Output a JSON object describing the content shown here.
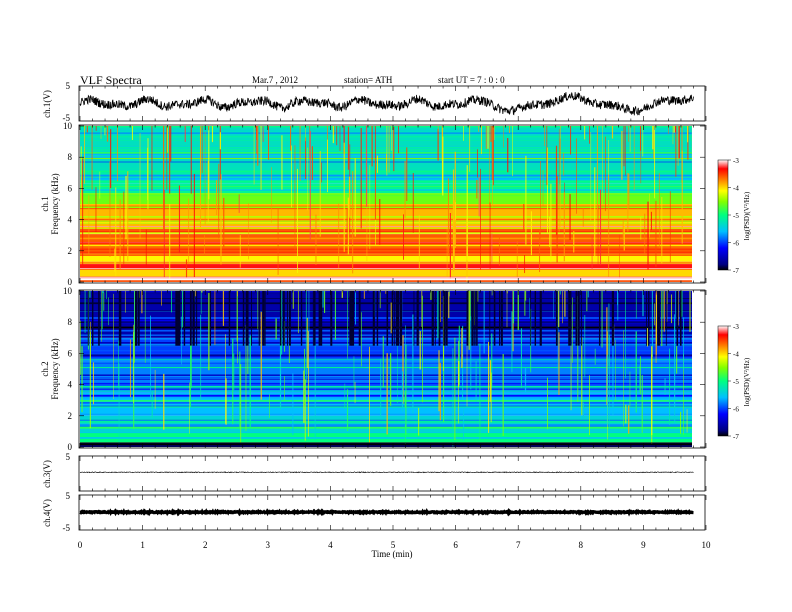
{
  "header": {
    "title": "VLF  Spectra",
    "date": "Mar.7  , 2012",
    "station": "station= ATH",
    "start": "start  UT  =    7 : 0 : 0"
  },
  "chart_data": [
    {
      "type": "line",
      "ylabel": "ch.1(V)",
      "ylim": [
        -5,
        5
      ],
      "yticks": [
        "5",
        "-5"
      ],
      "xlim": [
        0,
        10
      ],
      "data_end_min": 9.8,
      "description_values": {
        "mean": 0.0,
        "amplitude": 2.5
      }
    },
    {
      "type": "heatmap",
      "ylabel_top": "ch.1",
      "ylabel": "Frequency  (kHz)",
      "ylim": [
        0,
        10
      ],
      "yticks": [
        "0",
        "2",
        "4",
        "6",
        "8",
        "10"
      ],
      "xlim": [
        0,
        10
      ],
      "data_end_min": 9.8,
      "colorbar": {
        "label": "log(PSD)(V²/Hz)",
        "range": [
          -7,
          -3
        ],
        "ticks": [
          "-3",
          "-4",
          "-5",
          "-6",
          "-7"
        ]
      },
      "bands": [
        {
          "from": 0.0,
          "to": 0.35,
          "level": -3.2
        },
        {
          "from": 0.35,
          "to": 0.8,
          "level": -4.0
        },
        {
          "from": 0.8,
          "to": 1.3,
          "level": -3.3
        },
        {
          "from": 1.3,
          "to": 1.8,
          "level": -4.1
        },
        {
          "from": 1.8,
          "to": 3.4,
          "level": -3.6
        },
        {
          "from": 3.4,
          "to": 5.0,
          "level": -3.9
        },
        {
          "from": 5.0,
          "to": 5.7,
          "level": -4.6
        },
        {
          "from": 5.7,
          "to": 6.3,
          "level": -5.1
        },
        {
          "from": 6.3,
          "to": 10.0,
          "level": -5.3
        }
      ]
    },
    {
      "type": "heatmap",
      "ylabel_top": "ch.2",
      "ylabel": "Frequency  (kHz)",
      "ylim": [
        0,
        10
      ],
      "yticks": [
        "0",
        "2",
        "4",
        "6",
        "8",
        "10"
      ],
      "xlim": [
        0,
        10
      ],
      "data_end_min": 9.8,
      "colorbar": {
        "label": "log(PSD)(V²/Hz)",
        "range": [
          -7,
          -3
        ],
        "ticks": [
          "-3",
          "-4",
          "-5",
          "-6",
          "-7"
        ]
      },
      "bands": [
        {
          "from": 0.0,
          "to": 0.3,
          "level": -7.0
        },
        {
          "from": 0.3,
          "to": 0.9,
          "level": -5.0
        },
        {
          "from": 0.9,
          "to": 2.0,
          "level": -5.4
        },
        {
          "from": 2.0,
          "to": 3.5,
          "level": -5.6
        },
        {
          "from": 3.5,
          "to": 5.5,
          "level": -5.8
        },
        {
          "from": 5.5,
          "to": 7.0,
          "level": -6.0
        },
        {
          "from": 7.0,
          "to": 10.0,
          "level": -6.6
        }
      ]
    },
    {
      "type": "line",
      "ylabel": "ch.3(V)",
      "ylim": [
        -5,
        5
      ],
      "yticks": [
        "5"
      ],
      "xlim": [
        0,
        10
      ],
      "data_end_min": 9.8,
      "description_values": {
        "mean": 0.0,
        "amplitude": 0.05
      }
    },
    {
      "type": "line",
      "ylabel": "ch.4(V)",
      "ylim": [
        -5,
        5
      ],
      "yticks": [
        "5",
        "-5"
      ],
      "xlim": [
        0,
        10
      ],
      "data_end_min": 9.8,
      "description_values": {
        "mean": 0.0,
        "amplitude": 0.25
      }
    }
  ],
  "xaxis": {
    "label": "Time  (min)",
    "ticks": [
      "0",
      "1",
      "2",
      "3",
      "4",
      "5",
      "6",
      "7",
      "8",
      "9",
      "10"
    ]
  }
}
